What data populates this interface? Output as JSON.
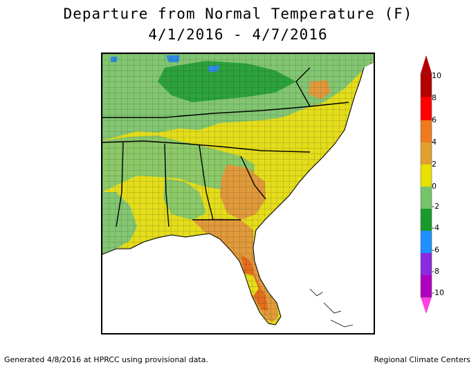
{
  "title": {
    "line1": "Departure from Normal Temperature (F)",
    "line2": "4/1/2016 - 4/7/2016"
  },
  "legend": {
    "labels": [
      "10",
      "8",
      "6",
      "4",
      "2",
      "0",
      "-2",
      "-4",
      "-6",
      "-8",
      "-10"
    ],
    "colors": [
      "#b30000",
      "#ff0000",
      "#f07a1e",
      "#e0a030",
      "#e8e000",
      "#77c36b",
      "#1a9a2e",
      "#1f90ff",
      "#8a2be2",
      "#b000c0",
      "#ff40e0"
    ]
  },
  "map": {
    "colors": {
      "warm6": "#e36d1f",
      "warm4": "#e09a3c",
      "warm2": "#e4dd1c",
      "zero": "#82c672",
      "cool2": "#5fb85a",
      "cool4": "#1e9b32",
      "cool6": "#2f8ce0"
    }
  },
  "footer": {
    "left": "Generated 4/8/2016 at HPRCC using provisional data.",
    "right": "Regional Climate Centers"
  }
}
